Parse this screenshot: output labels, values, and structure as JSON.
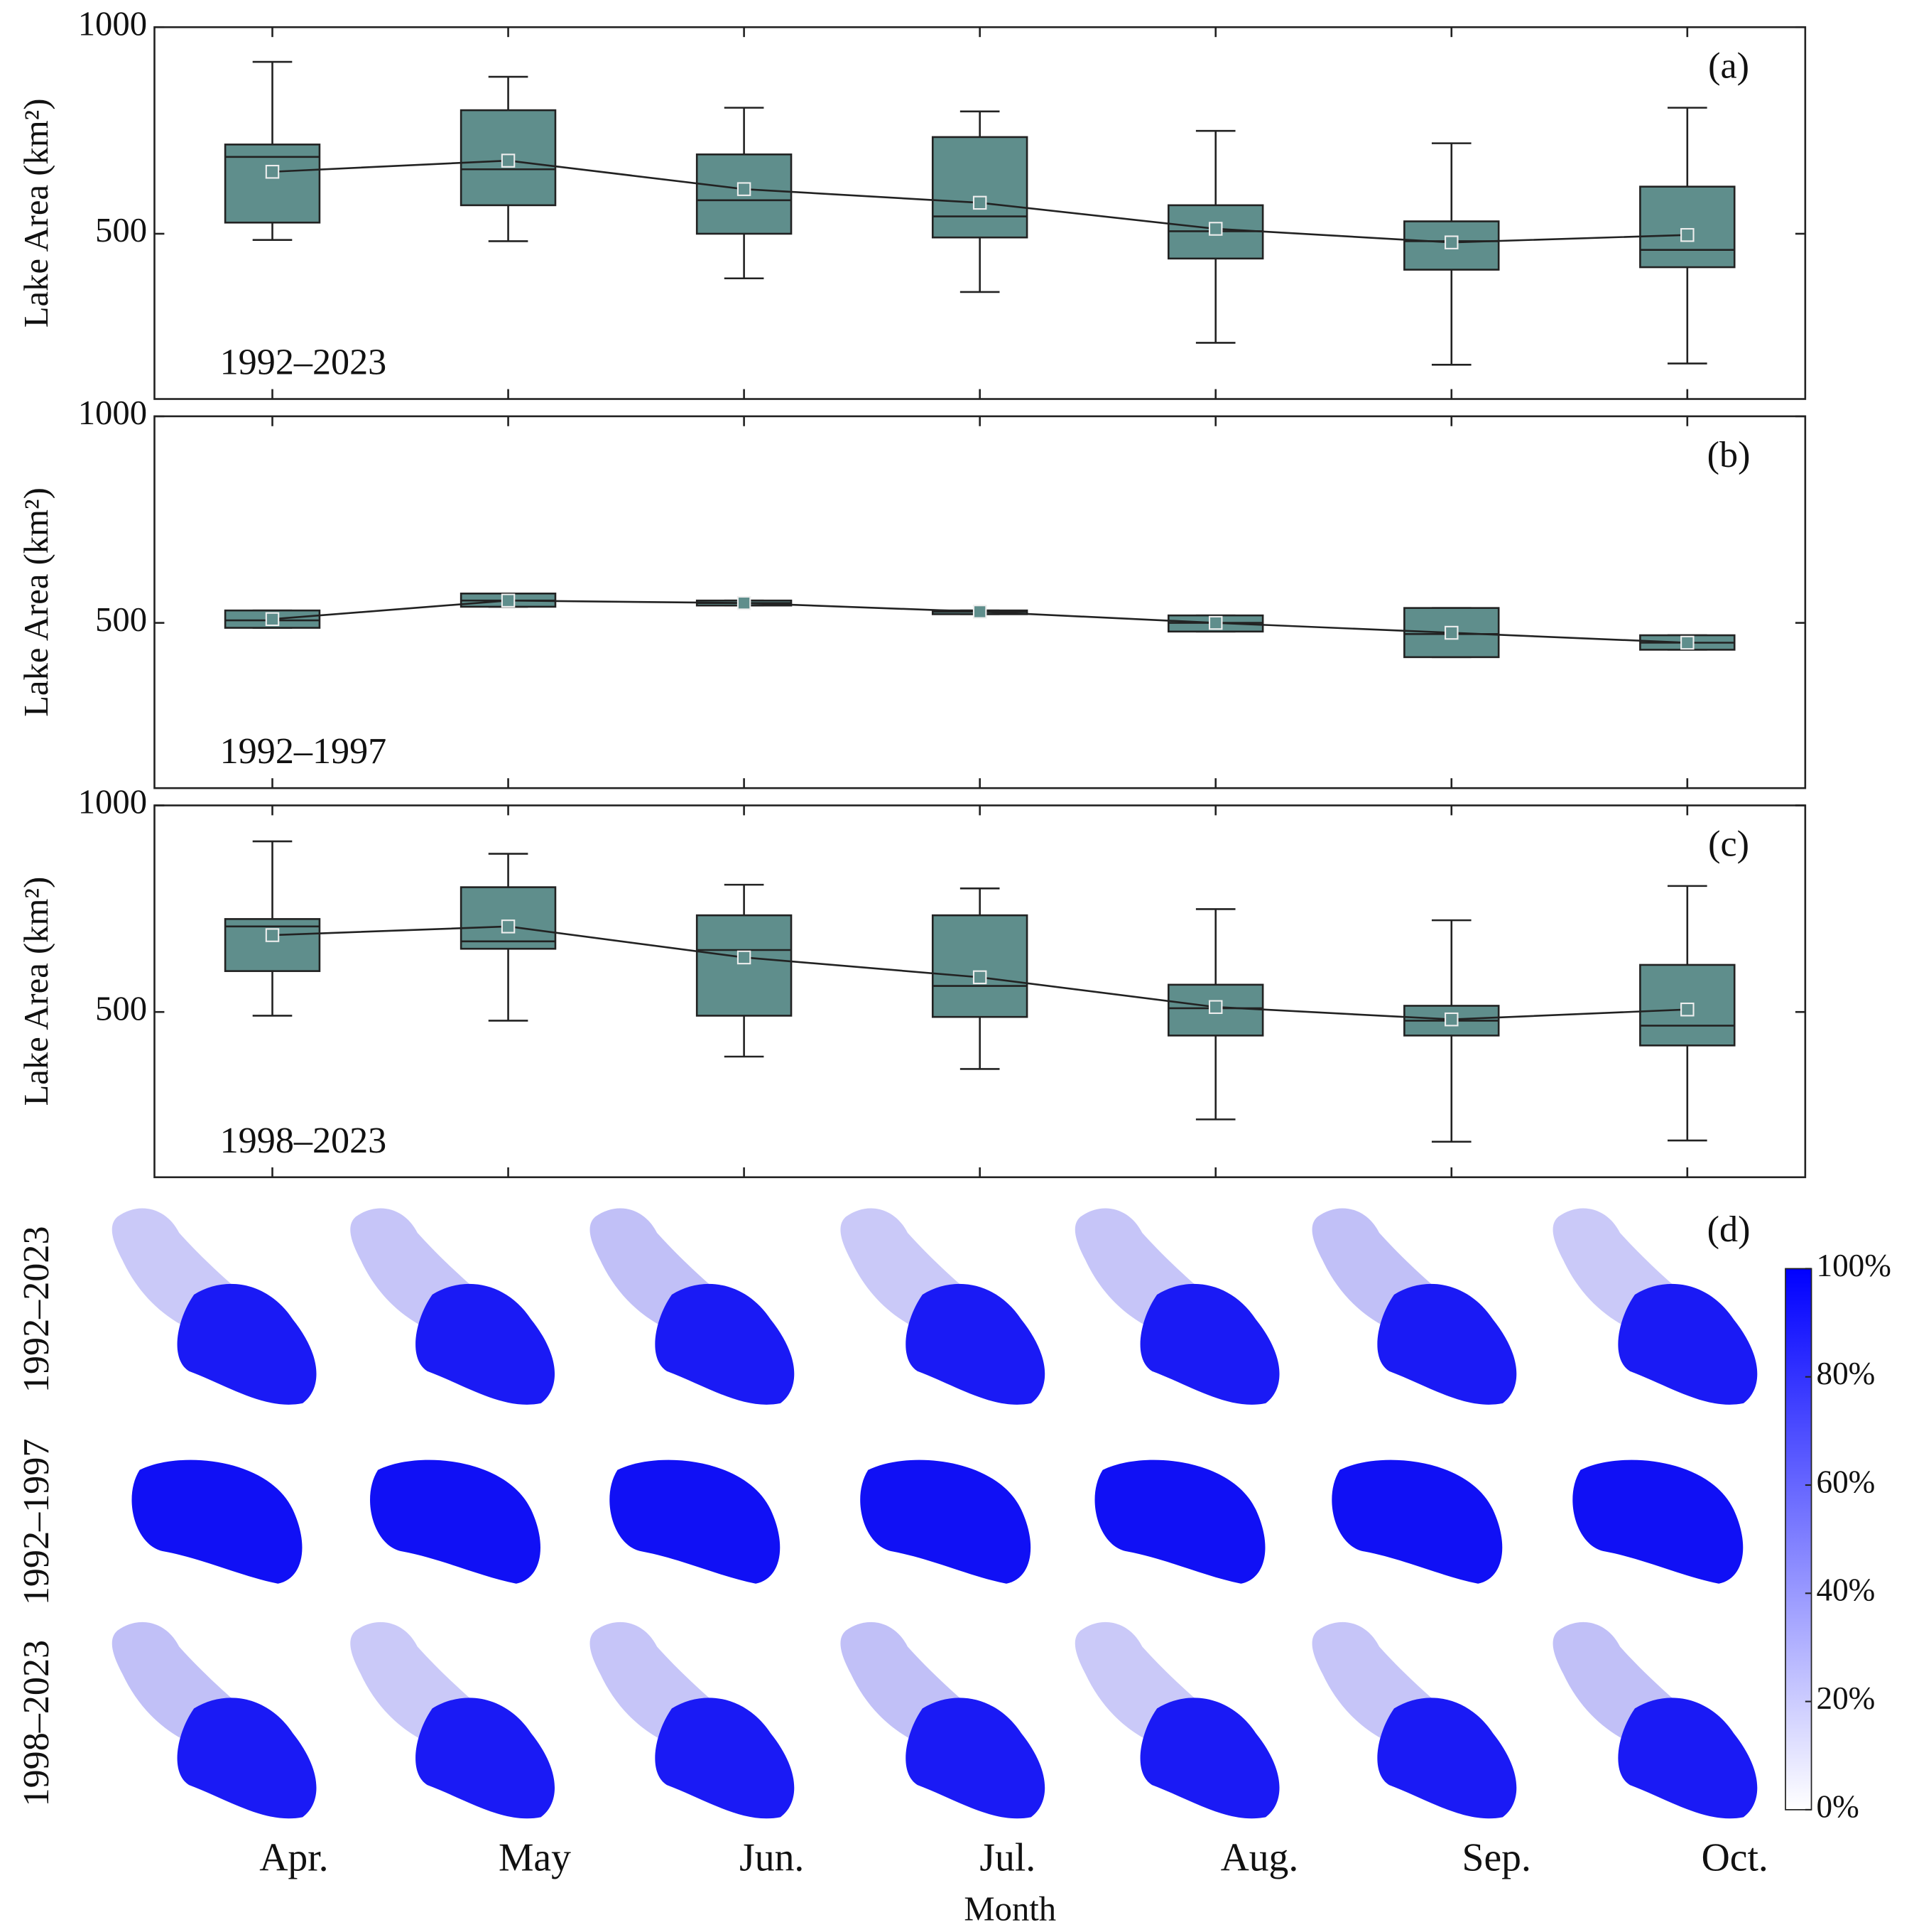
{
  "chart_data": [
    {
      "type": "box",
      "label": "(a)",
      "annotation": "1992–2023",
      "ylabel": "Lake Area (km²)",
      "color": "#5f8e8c",
      "ylim": [
        100,
        1000
      ],
      "yticks": [
        500,
        1000
      ],
      "boxes": {
        "min": [
          485,
          482,
          392,
          359,
          236,
          183,
          186
        ],
        "q1": [
          527,
          569,
          500,
          491,
          440,
          413,
          419
        ],
        "median": [
          686,
          656,
          581,
          542,
          506,
          482,
          461
        ],
        "q3": [
          716,
          799,
          692,
          734,
          569,
          530,
          614
        ],
        "max": [
          916,
          880,
          805,
          796,
          749,
          719,
          805
        ],
        "mean": [
          650,
          677,
          608,
          575,
          512,
          479,
          497
        ]
      }
    },
    {
      "type": "box",
      "label": "(b)",
      "annotation": "1992–1997",
      "ylabel": "Lake Area (km²)",
      "color": "#5f8e8c",
      "ylim": [
        100,
        1000
      ],
      "yticks": [
        500,
        1000
      ],
      "boxes": {
        "min": [
          488,
          539,
          542,
          521,
          479,
          417,
          435
        ],
        "q1": [
          488,
          539,
          542,
          521,
          479,
          417,
          435
        ],
        "median": [
          506,
          554,
          548,
          527,
          500,
          473,
          452
        ],
        "q3": [
          530,
          571,
          554,
          530,
          518,
          536,
          470
        ],
        "max": [
          530,
          571,
          554,
          530,
          518,
          536,
          470
        ],
        "mean": [
          509,
          554,
          548,
          527,
          500,
          476,
          452
        ]
      }
    },
    {
      "type": "box",
      "label": "(c)",
      "annotation": "1998–2023",
      "ylabel": "Lake Area (km²)",
      "color": "#5f8e8c",
      "ylim": [
        100,
        1000
      ],
      "yticks": [
        500,
        1000
      ],
      "boxes": {
        "min": [
          491,
          479,
          392,
          362,
          240,
          186,
          189
        ],
        "q1": [
          599,
          653,
          491,
          488,
          443,
          443,
          419
        ],
        "median": [
          707,
          671,
          650,
          563,
          509,
          479,
          467
        ],
        "q3": [
          725,
          802,
          734,
          734,
          566,
          515,
          614
        ],
        "max": [
          913,
          883,
          808,
          799,
          749,
          722,
          805
        ],
        "mean": [
          686,
          707,
          632,
          584,
          512,
          482,
          506
        ]
      }
    },
    {
      "type": "map",
      "label": "(d)",
      "xlabel": "Month",
      "rows": [
        "1992–2023",
        "1992–1997",
        "1998–2023"
      ],
      "categories": [
        "Apr.",
        "May",
        "Jun.",
        "Jul.",
        "Aug.",
        "Sep.",
        "Oct."
      ],
      "colorbar": {
        "lim": [
          0,
          100
        ],
        "colors": [
          "#ffffff",
          "#0000ff"
        ],
        "ticks": [
          {
            "value": 0,
            "label": "0%"
          },
          {
            "value": 20,
            "label": "20%"
          },
          {
            "value": 40,
            "label": "40%"
          },
          {
            "value": 60,
            "label": "60%"
          },
          {
            "value": 80,
            "label": "80%"
          },
          {
            "value": 100,
            "label": "100%"
          }
        ]
      }
    }
  ]
}
